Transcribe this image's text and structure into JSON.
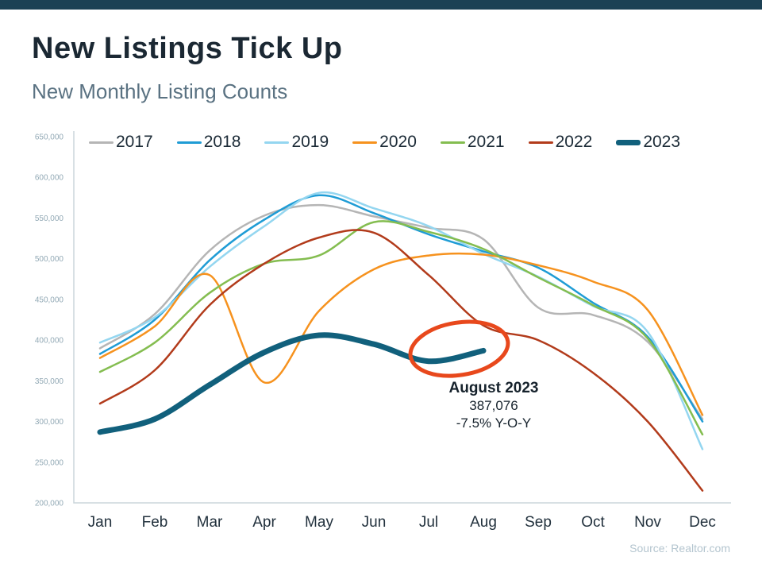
{
  "page": {
    "title": "New Listings Tick Up",
    "subtitle": "New Monthly Listing Counts",
    "source": "Source: Realtor.com"
  },
  "chart_data": {
    "type": "line",
    "title": "New Monthly Listing Counts",
    "categories": [
      "Jan",
      "Feb",
      "Mar",
      "Apr",
      "May",
      "Jun",
      "Jul",
      "Aug",
      "Sep",
      "Oct",
      "Nov",
      "Dec"
    ],
    "ylim": [
      200000,
      650000
    ],
    "y_ticks": [
      200000,
      250000,
      300000,
      350000,
      400000,
      450000,
      500000,
      550000,
      600000,
      650000
    ],
    "y_tick_labels": [
      "200,000",
      "250,000",
      "300,000",
      "350,000",
      "400,000",
      "450,000",
      "500,000",
      "550,000",
      "600,000",
      "650,000"
    ],
    "grid": false,
    "legend_position": "top",
    "series": [
      {
        "name": "2017",
        "color": "#b5b5b5",
        "width": 2.5,
        "values": [
          390000,
          432000,
          510000,
          553000,
          566000,
          552000,
          538000,
          524000,
          440000,
          431000,
          398000,
          303000
        ]
      },
      {
        "name": "2018",
        "color": "#1f9cd5",
        "width": 2.5,
        "values": [
          383000,
          425000,
          498000,
          548000,
          578000,
          556000,
          530000,
          509000,
          489000,
          446000,
          404000,
          300000
        ]
      },
      {
        "name": "2019",
        "color": "#94d6f0",
        "width": 2.5,
        "values": [
          397000,
          428000,
          490000,
          540000,
          581000,
          562000,
          540000,
          506000,
          478000,
          442000,
          410000,
          266000
        ]
      },
      {
        "name": "2020",
        "color": "#f6921e",
        "width": 2.5,
        "values": [
          378000,
          417000,
          480000,
          348000,
          436000,
          487000,
          504000,
          505000,
          492000,
          472000,
          437000,
          308000
        ]
      },
      {
        "name": "2021",
        "color": "#84bd50",
        "width": 2.5,
        "values": [
          361000,
          397000,
          458000,
          494000,
          504000,
          545000,
          533000,
          512000,
          477000,
          443000,
          402000,
          284000
        ]
      },
      {
        "name": "2022",
        "color": "#b23b1b",
        "width": 2.5,
        "values": [
          322000,
          363000,
          443000,
          494000,
          526000,
          532000,
          480000,
          418000,
          400000,
          360000,
          300000,
          215000
        ]
      },
      {
        "name": "2023",
        "color": "#11607c",
        "width": 7,
        "values": [
          287000,
          303000,
          345000,
          385000,
          406000,
          395000,
          374000,
          387076
        ]
      }
    ],
    "annotation": {
      "label": "August 2023",
      "value": "387,076",
      "change": "-7.5% Y-O-Y",
      "highlight_color": "#e8481c",
      "target_series": "2023",
      "target_month": "Aug"
    }
  }
}
